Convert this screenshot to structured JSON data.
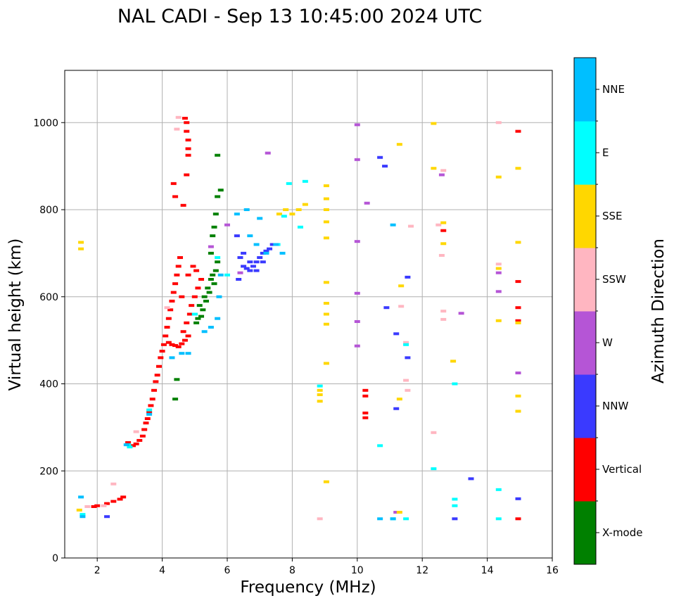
{
  "chart_data": {
    "type": "scatter",
    "title": "NAL CADI - Sep 13 10:45:00 2024 UTC",
    "xlabel": "Frequency (MHz)",
    "ylabel": "Virtual height (km)",
    "xlim": [
      1,
      16
    ],
    "ylim": [
      0,
      1120
    ],
    "xticks": [
      2,
      4,
      6,
      8,
      10,
      12,
      14,
      16
    ],
    "yticks": [
      0,
      200,
      400,
      600,
      800,
      1000
    ],
    "grid": true,
    "colorbar": {
      "label": "Azimuth Direction",
      "categories": [
        "X-mode",
        "Vertical",
        "NNW",
        "W",
        "SSW",
        "SSE",
        "E",
        "NNE"
      ],
      "colors": [
        "#008000",
        "#ff0000",
        "#3a3aff",
        "#b555d6",
        "#ffb6c1",
        "#ffd700",
        "#00ffff",
        "#00bfff"
      ]
    },
    "series": [
      {
        "name": "Vertical",
        "color": "#ff0000",
        "points": [
          [
            1.9,
            118
          ],
          [
            2.0,
            120
          ],
          [
            2.3,
            125
          ],
          [
            2.5,
            130
          ],
          [
            2.7,
            135
          ],
          [
            2.8,
            140
          ],
          [
            2.95,
            265
          ],
          [
            3.1,
            258
          ],
          [
            3.2,
            262
          ],
          [
            3.3,
            270
          ],
          [
            3.4,
            280
          ],
          [
            3.45,
            295
          ],
          [
            3.5,
            310
          ],
          [
            3.55,
            320
          ],
          [
            3.6,
            335
          ],
          [
            3.65,
            350
          ],
          [
            3.7,
            365
          ],
          [
            3.75,
            385
          ],
          [
            3.8,
            405
          ],
          [
            3.85,
            420
          ],
          [
            3.9,
            440
          ],
          [
            3.95,
            460
          ],
          [
            4.0,
            475
          ],
          [
            4.05,
            490
          ],
          [
            4.1,
            510
          ],
          [
            4.15,
            530
          ],
          [
            4.2,
            550
          ],
          [
            4.25,
            570
          ],
          [
            4.3,
            590
          ],
          [
            4.35,
            610
          ],
          [
            4.4,
            630
          ],
          [
            4.45,
            650
          ],
          [
            4.5,
            670
          ],
          [
            4.55,
            690
          ],
          [
            4.2,
            495
          ],
          [
            4.3,
            490
          ],
          [
            4.4,
            488
          ],
          [
            4.5,
            485
          ],
          [
            4.6,
            492
          ],
          [
            4.7,
            500
          ],
          [
            4.8,
            510
          ],
          [
            4.65,
            520
          ],
          [
            4.75,
            540
          ],
          [
            4.85,
            560
          ],
          [
            4.9,
            580
          ],
          [
            5.0,
            600
          ],
          [
            5.1,
            620
          ],
          [
            5.2,
            640
          ],
          [
            4.6,
            600
          ],
          [
            4.8,
            650
          ],
          [
            4.95,
            670
          ],
          [
            5.05,
            660
          ],
          [
            4.35,
            860
          ],
          [
            4.4,
            830
          ],
          [
            4.7,
            1010
          ],
          [
            4.75,
            1000
          ],
          [
            4.75,
            980
          ],
          [
            4.8,
            960
          ],
          [
            4.8,
            940
          ],
          [
            4.8,
            925
          ],
          [
            4.75,
            880
          ],
          [
            4.65,
            810
          ],
          [
            10.25,
            385
          ],
          [
            10.25,
            372
          ],
          [
            10.25,
            333
          ],
          [
            10.25,
            322
          ],
          [
            12.65,
            752
          ],
          [
            14.95,
            980
          ],
          [
            14.95,
            635
          ],
          [
            14.95,
            575
          ],
          [
            14.95,
            545
          ],
          [
            14.95,
            90
          ]
        ]
      },
      {
        "name": "X-mode",
        "color": "#008000",
        "points": [
          [
            5.0,
            560
          ],
          [
            5.05,
            540
          ],
          [
            5.1,
            550
          ],
          [
            5.15,
            580
          ],
          [
            5.2,
            555
          ],
          [
            5.25,
            570
          ],
          [
            5.3,
            600
          ],
          [
            5.35,
            590
          ],
          [
            5.4,
            620
          ],
          [
            5.45,
            610
          ],
          [
            5.5,
            640
          ],
          [
            5.55,
            650
          ],
          [
            5.6,
            630
          ],
          [
            5.65,
            660
          ],
          [
            5.7,
            680
          ],
          [
            5.5,
            700
          ],
          [
            5.55,
            740
          ],
          [
            5.6,
            760
          ],
          [
            5.65,
            790
          ],
          [
            5.7,
            830
          ],
          [
            5.8,
            845
          ],
          [
            5.7,
            925
          ],
          [
            4.45,
            410
          ],
          [
            4.4,
            365
          ]
        ]
      },
      {
        "name": "NNW",
        "color": "#3a3aff",
        "points": [
          [
            6.3,
            740
          ],
          [
            6.4,
            690
          ],
          [
            6.5,
            670
          ],
          [
            6.6,
            665
          ],
          [
            6.7,
            660
          ],
          [
            6.8,
            670
          ],
          [
            6.9,
            680
          ],
          [
            7.0,
            690
          ],
          [
            7.1,
            700
          ],
          [
            7.2,
            705
          ],
          [
            7.3,
            710
          ],
          [
            7.4,
            720
          ],
          [
            6.35,
            640
          ],
          [
            6.5,
            700
          ],
          [
            6.7,
            680
          ],
          [
            6.9,
            660
          ],
          [
            7.1,
            680
          ],
          [
            2.3,
            95
          ],
          [
            10.7,
            920
          ],
          [
            10.85,
            900
          ],
          [
            10.9,
            575
          ],
          [
            11.2,
            343
          ],
          [
            11.2,
            515
          ],
          [
            11.55,
            460
          ],
          [
            11.55,
            645
          ],
          [
            13.0,
            90
          ],
          [
            13.5,
            182
          ],
          [
            14.95,
            136
          ]
        ]
      },
      {
        "name": "W",
        "color": "#b555d6",
        "points": [
          [
            5.5,
            715
          ],
          [
            6.0,
            765
          ],
          [
            6.4,
            655
          ],
          [
            7.25,
            930
          ],
          [
            10.0,
            995
          ],
          [
            10.0,
            915
          ],
          [
            10.0,
            727
          ],
          [
            10.0,
            608
          ],
          [
            10.0,
            543
          ],
          [
            10.0,
            487
          ],
          [
            10.3,
            815
          ],
          [
            11.2,
            105
          ],
          [
            12.6,
            880
          ],
          [
            13.2,
            562
          ],
          [
            14.35,
            655
          ],
          [
            14.35,
            612
          ],
          [
            14.95,
            425
          ]
        ]
      },
      {
        "name": "SSW",
        "color": "#ffb6c1",
        "points": [
          [
            1.7,
            118
          ],
          [
            2.2,
            120
          ],
          [
            2.5,
            170
          ],
          [
            3.2,
            290
          ],
          [
            4.15,
            575
          ],
          [
            4.5,
            1012
          ],
          [
            4.45,
            985
          ],
          [
            8.85,
            90
          ],
          [
            11.35,
            578
          ],
          [
            11.5,
            495
          ],
          [
            11.55,
            385
          ],
          [
            11.5,
            408
          ],
          [
            11.65,
            762
          ],
          [
            12.5,
            765
          ],
          [
            12.6,
            695
          ],
          [
            12.65,
            890
          ],
          [
            12.65,
            567
          ],
          [
            12.65,
            548
          ],
          [
            14.35,
            1000
          ],
          [
            14.35,
            675
          ],
          [
            12.35,
            288
          ]
        ]
      },
      {
        "name": "SSE",
        "color": "#ffd700",
        "points": [
          [
            1.45,
            110
          ],
          [
            1.5,
            725
          ],
          [
            1.5,
            710
          ],
          [
            7.6,
            790
          ],
          [
            7.8,
            800
          ],
          [
            8.0,
            790
          ],
          [
            8.2,
            800
          ],
          [
            8.4,
            812
          ],
          [
            9.05,
            855
          ],
          [
            9.05,
            825
          ],
          [
            9.05,
            800
          ],
          [
            9.05,
            772
          ],
          [
            9.05,
            735
          ],
          [
            9.05,
            633
          ],
          [
            9.05,
            585
          ],
          [
            9.05,
            560
          ],
          [
            9.05,
            537
          ],
          [
            9.05,
            447
          ],
          [
            8.85,
            375
          ],
          [
            8.85,
            385
          ],
          [
            8.85,
            360
          ],
          [
            9.05,
            175
          ],
          [
            11.3,
            950
          ],
          [
            11.35,
            625
          ],
          [
            11.3,
            365
          ],
          [
            11.3,
            105
          ],
          [
            12.35,
            998
          ],
          [
            12.35,
            895
          ],
          [
            12.65,
            770
          ],
          [
            12.65,
            722
          ],
          [
            12.95,
            452
          ],
          [
            14.35,
            875
          ],
          [
            14.35,
            665
          ],
          [
            14.35,
            545
          ],
          [
            14.95,
            895
          ],
          [
            14.95,
            725
          ],
          [
            14.95,
            540
          ],
          [
            14.95,
            372
          ],
          [
            14.95,
            337
          ]
        ]
      },
      {
        "name": "E",
        "color": "#00ffff",
        "points": [
          [
            1.55,
            100
          ],
          [
            2.95,
            260
          ],
          [
            3.0,
            255
          ],
          [
            3.6,
            340
          ],
          [
            5.0,
            560
          ],
          [
            5.7,
            690
          ],
          [
            6.0,
            650
          ],
          [
            7.55,
            720
          ],
          [
            7.75,
            785
          ],
          [
            7.9,
            860
          ],
          [
            8.25,
            760
          ],
          [
            8.4,
            865
          ],
          [
            8.85,
            395
          ],
          [
            10.7,
            258
          ],
          [
            11.1,
            90
          ],
          [
            11.5,
            90
          ],
          [
            11.5,
            490
          ],
          [
            12.35,
            205
          ],
          [
            13.0,
            135
          ],
          [
            13.0,
            120
          ],
          [
            13.0,
            400
          ],
          [
            14.35,
            157
          ],
          [
            14.35,
            90
          ]
        ]
      },
      {
        "name": "NNE",
        "color": "#00bfff",
        "points": [
          [
            1.5,
            140
          ],
          [
            1.55,
            95
          ],
          [
            2.9,
            260
          ],
          [
            3.6,
            330
          ],
          [
            4.3,
            460
          ],
          [
            4.6,
            470
          ],
          [
            4.8,
            470
          ],
          [
            5.3,
            520
          ],
          [
            5.5,
            530
          ],
          [
            5.7,
            550
          ],
          [
            5.75,
            600
          ],
          [
            5.8,
            650
          ],
          [
            6.3,
            790
          ],
          [
            6.6,
            800
          ],
          [
            6.7,
            740
          ],
          [
            6.9,
            720
          ],
          [
            7.0,
            780
          ],
          [
            7.2,
            700
          ],
          [
            7.5,
            720
          ],
          [
            7.7,
            700
          ],
          [
            11.1,
            765
          ],
          [
            11.1,
            90
          ],
          [
            10.7,
            90
          ]
        ]
      }
    ]
  }
}
